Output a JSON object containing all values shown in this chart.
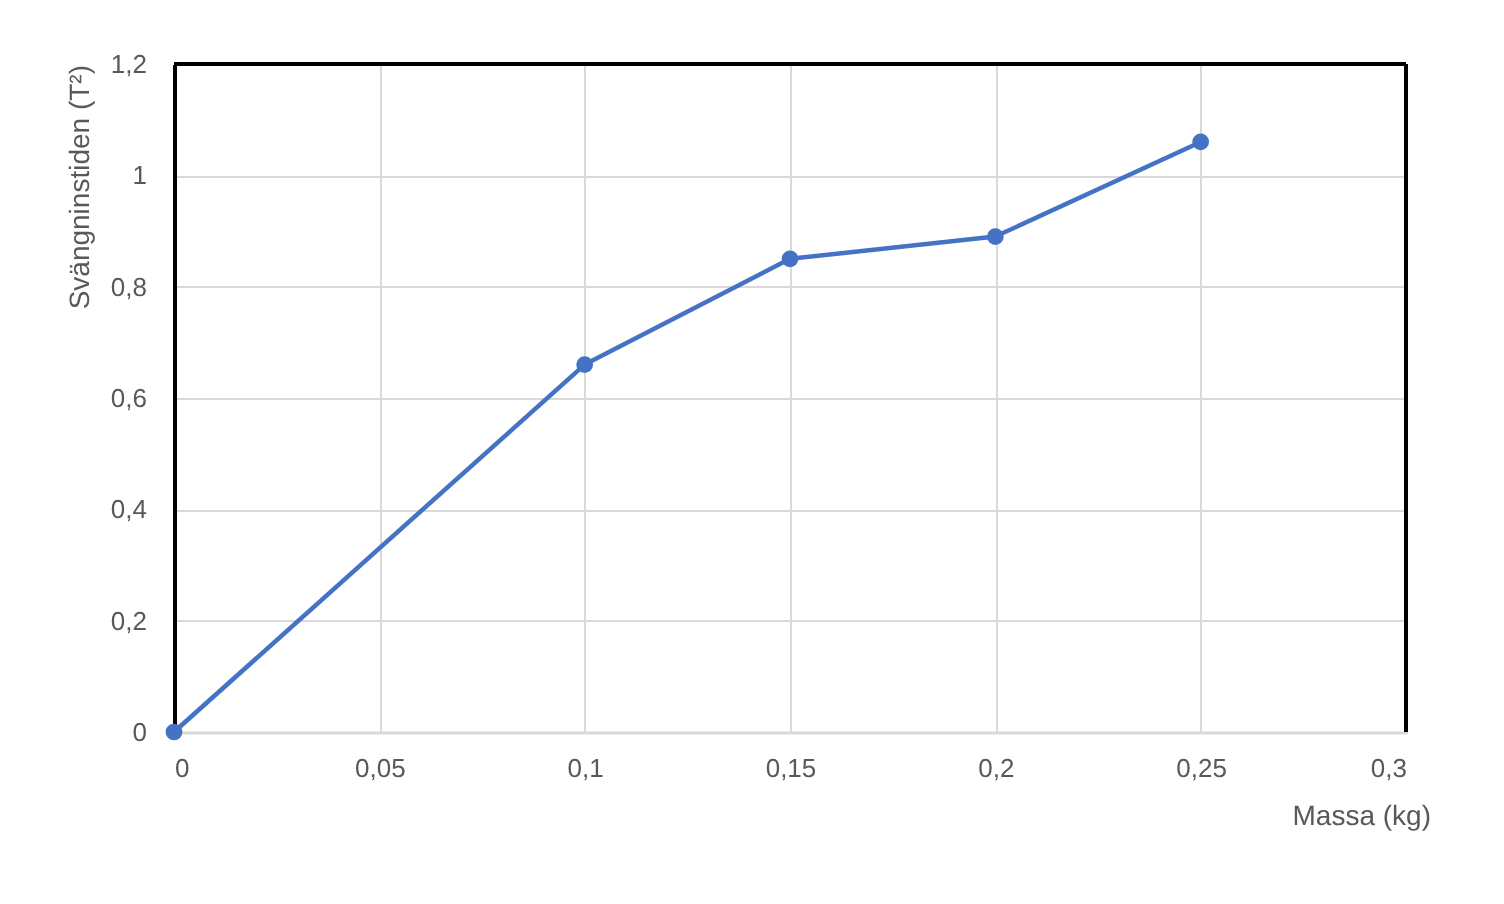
{
  "chart_data": {
    "type": "line",
    "xlabel": "Massa (kg)",
    "ylabel": "Svängninstiden (T²)",
    "x": [
      0,
      0.1,
      0.15,
      0.2,
      0.25
    ],
    "series": [
      {
        "color": "#4472c4",
        "values": [
          0,
          0.66,
          0.85,
          0.89,
          1.06
        ]
      }
    ],
    "xlim": [
      0,
      0.3
    ],
    "ylim": [
      0,
      1.2
    ],
    "xticks": [
      0,
      {
        "value": 0.05,
        "label": "0,05"
      },
      {
        "value": 0.1,
        "label": "0,1"
      },
      {
        "value": 0.15,
        "label": "0,15"
      },
      {
        "value": 0.2,
        "label": "0,2"
      },
      {
        "value": 0.25,
        "label": "0,25"
      },
      {
        "value": 0.3,
        "label": "0,3"
      }
    ],
    "yticks": [
      0,
      {
        "value": 0.2,
        "label": "0,2"
      },
      {
        "value": 0.4,
        "label": "0,4"
      },
      {
        "value": 0.6,
        "label": "0,6"
      },
      {
        "value": 0.8,
        "label": "0,8"
      },
      1,
      {
        "value": 1.2,
        "label": "1,2"
      }
    ],
    "grid": true,
    "marker": "circle",
    "line_style": "solid"
  }
}
